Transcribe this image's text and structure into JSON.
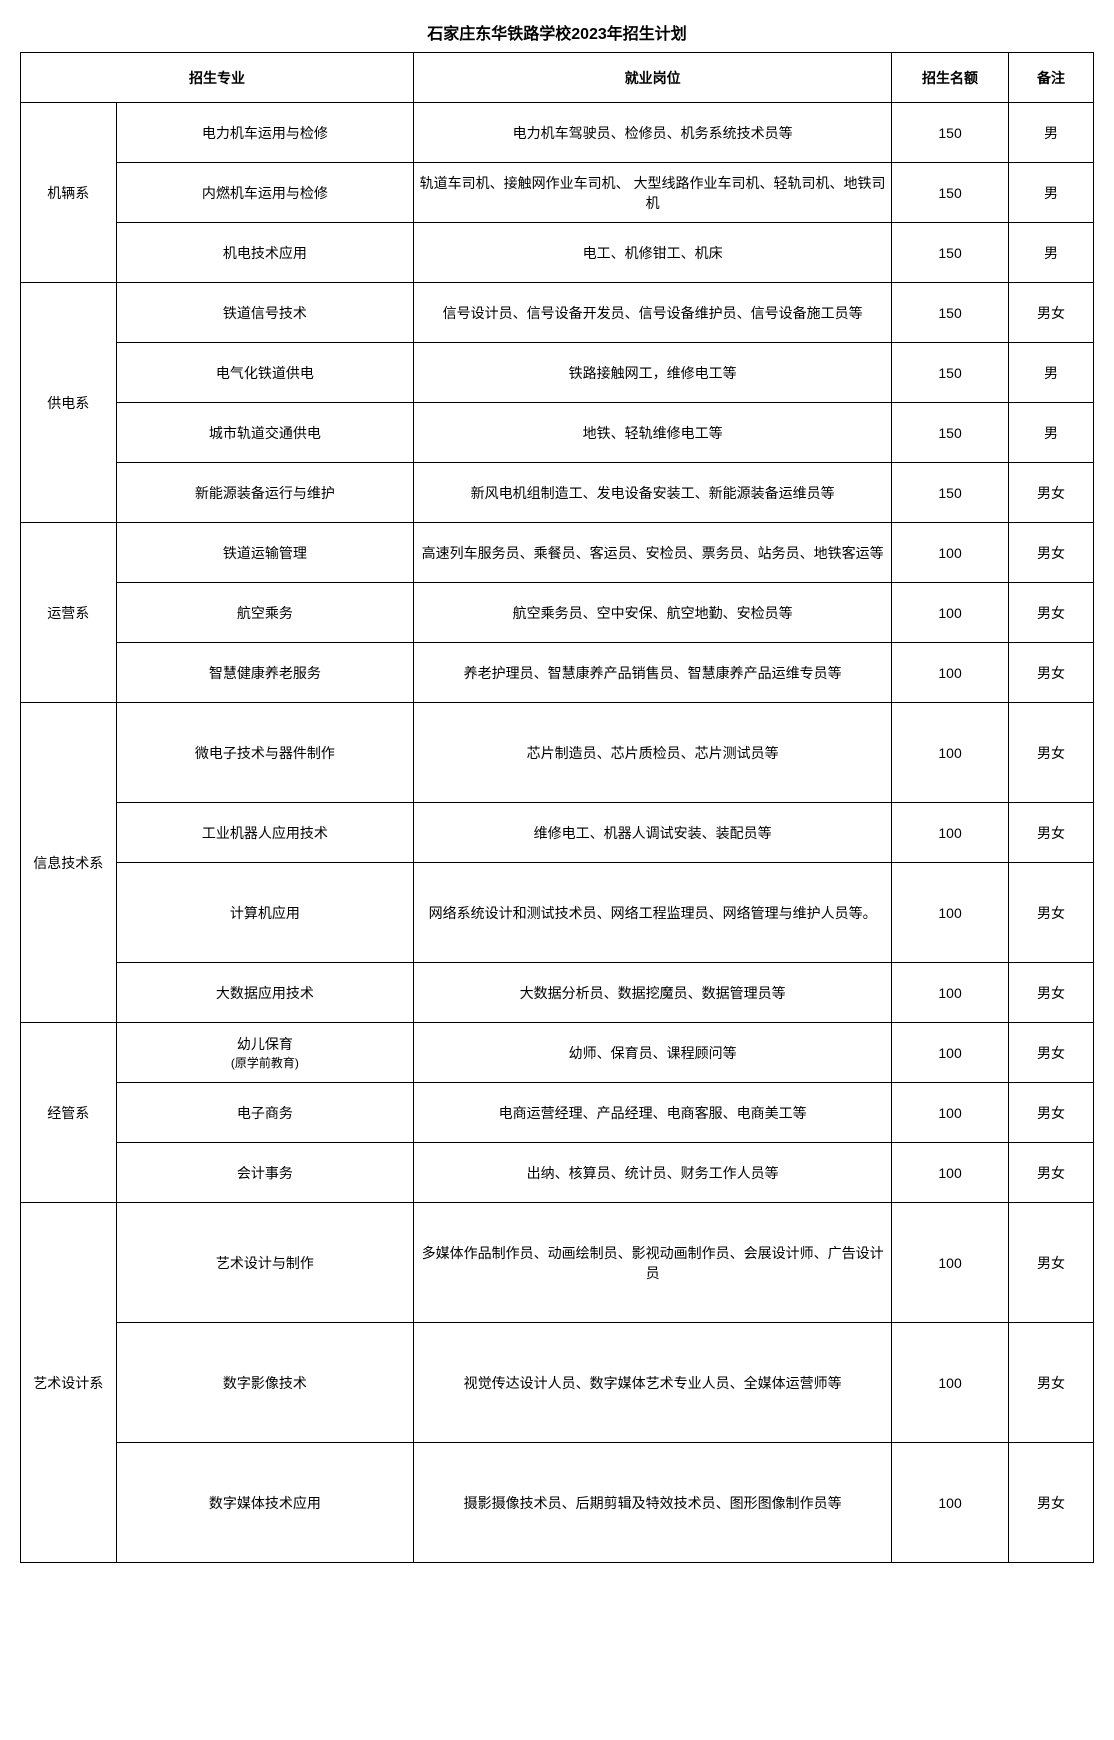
{
  "title": "石家庄东华铁路学校2023年招生计划",
  "headers": {
    "major": "招生专业",
    "job": "就业岗位",
    "quota": "招生名额",
    "note": "备注"
  },
  "colors": {
    "border": "#000000",
    "text": "#000000",
    "background": "#ffffff"
  },
  "departments": [
    {
      "name": "机辆系",
      "rows": [
        {
          "major": "电力机车运用与检修",
          "job": "电力机车驾驶员、检修员、机务系统技术员等",
          "quota": "150",
          "note": "男"
        },
        {
          "major": "内燃机车运用与检修",
          "job": "轨道车司机、接触网作业车司机、 大型线路作业车司机、轻轨司机、地铁司机",
          "quota": "150",
          "note": "男"
        },
        {
          "major": "机电技术应用",
          "job": "电工、机修钳工、机床",
          "quota": "150",
          "note": "男"
        }
      ]
    },
    {
      "name": "供电系",
      "rows": [
        {
          "major": "铁道信号技术",
          "job": "信号设计员、信号设备开发员、信号设备维护员、信号设备施工员等",
          "quota": "150",
          "note": "男女"
        },
        {
          "major": "电气化铁道供电",
          "job": "铁路接触网工，维修电工等",
          "quota": "150",
          "note": "男"
        },
        {
          "major": "城市轨道交通供电",
          "job": "地铁、轻轨维修电工等",
          "quota": "150",
          "note": "男"
        },
        {
          "major": "新能源装备运行与维护",
          "job": "新风电机组制造工、发电设备安装工、新能源装备运维员等",
          "quota": "150",
          "note": "男女"
        }
      ]
    },
    {
      "name": "运营系",
      "rows": [
        {
          "major": "铁道运输管理",
          "job": "高速列车服务员、乘餐员、客运员、安检员、票务员、站务员、地铁客运等",
          "quota": "100",
          "note": "男女"
        },
        {
          "major": "航空乘务",
          "job": "航空乘务员、空中安保、航空地勤、安检员等",
          "quota": "100",
          "note": "男女"
        },
        {
          "major": "智慧健康养老服务",
          "job": "养老护理员、智慧康养产品销售员、智慧康养产品运维专员等",
          "quota": "100",
          "note": "男女"
        }
      ]
    },
    {
      "name": "信息技术系",
      "rows": [
        {
          "major": "微电子技术与器件制作",
          "job": "芯片制造员、芯片质检员、芯片测试员等",
          "quota": "100",
          "note": "男女",
          "tall": true
        },
        {
          "major": "工业机器人应用技术",
          "job": "维修电工、机器人调试安装、装配员等",
          "quota": "100",
          "note": "男女"
        },
        {
          "major": "计算机应用",
          "job": "网络系统设计和测试技术员、网络工程监理员、网络管理与维护人员等。",
          "quota": "100",
          "note": "男女",
          "tall": true
        },
        {
          "major": "大数据应用技术",
          "job": "大数据分析员、数据挖魔员、数据管理员等",
          "quota": "100",
          "note": "男女"
        }
      ]
    },
    {
      "name": "经管系",
      "rows": [
        {
          "major": "幼儿保育",
          "majorSub": "(原学前教育)",
          "job": "幼师、保育员、课程顾问等",
          "quota": "100",
          "note": "男女"
        },
        {
          "major": "电子商务",
          "job": "电商运营经理、产品经理、电商客服、电商美工等",
          "quota": "100",
          "note": "男女"
        },
        {
          "major": "会计事务",
          "job": "出纳、核算员、统计员、财务工作人员等",
          "quota": "100",
          "note": "男女"
        }
      ]
    },
    {
      "name": "艺术设计系",
      "rows": [
        {
          "major": "艺术设计与制作",
          "job": "多媒体作品制作员、动画绘制员、影视动画制作员、会展设计师、广告设计员",
          "quota": "100",
          "note": "男女",
          "taller": true
        },
        {
          "major": "数字影像技术",
          "job": "视觉传达设计人员、数字媒体艺术专业人员、全媒体运营师等",
          "quota": "100",
          "note": "男女",
          "taller": true
        },
        {
          "major": "数字媒体技术应用",
          "job": "摄影摄像技术员、后期剪辑及特效技术员、图形图像制作员等",
          "quota": "100",
          "note": "男女",
          "taller": true
        }
      ]
    }
  ]
}
